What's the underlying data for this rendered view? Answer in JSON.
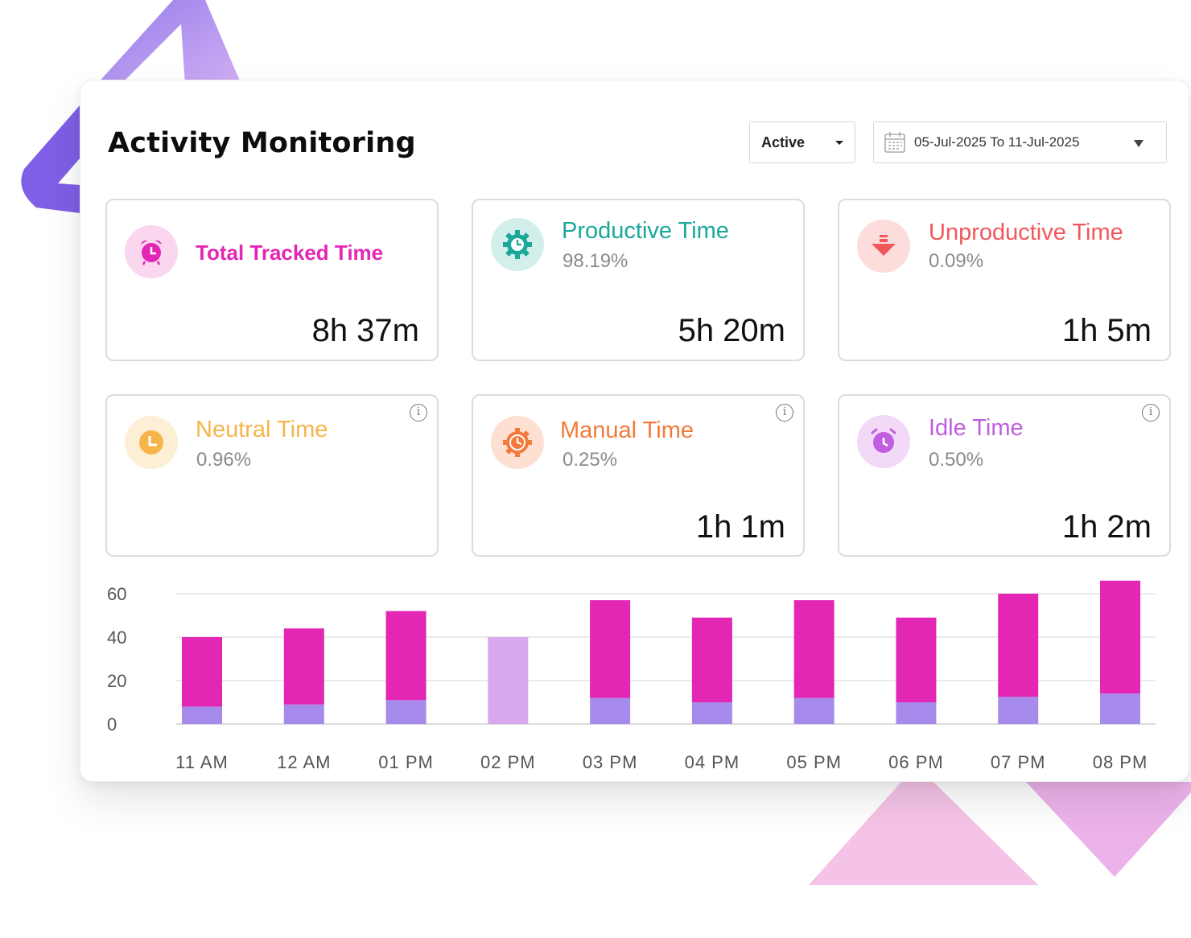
{
  "header": {
    "title": "Activity Monitoring",
    "status_select": "Active",
    "date_range": "05-Jul-2025 To 11-Jul-2025"
  },
  "stats": [
    {
      "name": "Total Tracked Time",
      "percent": "",
      "value": "8h 37m",
      "color": "#e327b4",
      "icon": "alarm-clock-icon"
    },
    {
      "name": "Productive Time",
      "percent": "98.19%",
      "value": "5h 20m",
      "color": "#1aa899",
      "icon": "gear-clock-icon"
    },
    {
      "name": "Unproductive Time",
      "percent": "0.09%",
      "value": "1h 5m",
      "color": "#f1585c",
      "icon": "down-arrow-icon"
    },
    {
      "name": "Neutral Time",
      "percent": "0.96%",
      "value": "",
      "color": "#f6b54a",
      "icon": "clock-icon"
    },
    {
      "name": "Manual Time",
      "percent": "0.25%",
      "value": "1h 1m",
      "color": "#f37a3a",
      "icon": "settings-clock-icon"
    },
    {
      "name": "Idle Time",
      "percent": "0.50%",
      "value": "1h 2m",
      "color": "#c05ee0",
      "icon": "alarm-icon"
    }
  ],
  "info_symbol": "i",
  "chart_data": {
    "type": "bar",
    "stacked": true,
    "categories": [
      "11 AM",
      "12 AM",
      "01 PM",
      "02 PM",
      "03 PM",
      "04 PM",
      "05 PM",
      "06 PM",
      "07 PM",
      "08 PM"
    ],
    "series": [
      {
        "values": [
          8,
          9,
          11,
          0,
          12,
          10,
          12,
          10,
          12.5,
          14
        ],
        "color": "#a78bec"
      },
      {
        "values": [
          32,
          35,
          41,
          40,
          45,
          39,
          45,
          39,
          47.5,
          52
        ],
        "color": "#e327b4"
      }
    ],
    "highlight": {
      "index": 3,
      "color": "#d9a8ec"
    },
    "ylim": [
      0,
      60
    ],
    "yticks": [
      0,
      20,
      40,
      60
    ],
    "grid": true
  }
}
